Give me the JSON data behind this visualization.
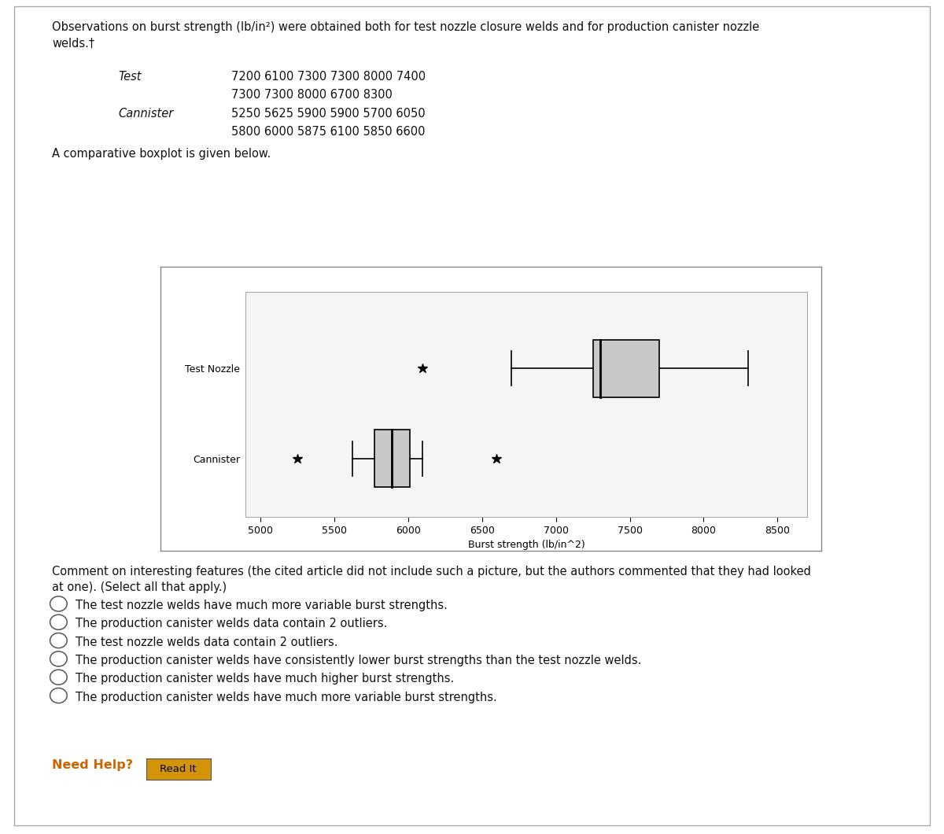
{
  "test_data": [
    7200,
    6100,
    7300,
    7300,
    8000,
    7400,
    7300,
    7300,
    8000,
    6700,
    8300
  ],
  "cannister_data": [
    5250,
    5625,
    5900,
    5900,
    5700,
    6050,
    5800,
    6000,
    5875,
    6100,
    5850,
    6600
  ],
  "xlim": [
    4900,
    8700
  ],
  "xticks": [
    5000,
    5500,
    6000,
    6500,
    7000,
    7500,
    8000,
    8500
  ],
  "xlabel": "Burst strength (lb/in^2)",
  "ylabel_test": "Test Nozzle",
  "ylabel_cannister": "Cannister",
  "box_facecolor": "#c8c8c8",
  "box_edge_color": "#000000",
  "whisker_color": "#000000",
  "outlier_color": "#000000",
  "plot_bg": "#ffffff",
  "inner_bg": "#f5f5f5",
  "page_bg": "#ffffff",
  "need_help_color": "#cc6600",
  "btn_color": "#d4940a",
  "intro_line1": "Observations on burst strength (lb/in²) were obtained both for test nozzle closure welds and for production canister nozzle",
  "intro_line2": "welds.†",
  "test_row1": "7200 6100 7300 7300 8000 7400",
  "test_row2": "7300 7300 8000 6700 8300",
  "can_row1": "5250 5625 5900 5900 5700 6050",
  "can_row2": "5800 6000 5875 6100 5850 6600",
  "comparative_text": "A comparative boxplot is given below.",
  "comment_text": "Comment on interesting features (the cited article did not include such a picture, but the authors commented that they had looked",
  "comment_text2": "at one). (Select all that apply.)",
  "options": [
    "The test nozzle welds have much more variable burst strengths.",
    "The production canister welds data contain 2 outliers.",
    "The test nozzle welds data contain 2 outliers.",
    "The production canister welds have consistently lower burst strengths than the test nozzle welds.",
    "The production canister welds have much higher burst strengths.",
    "The production canister welds have much more variable burst strengths."
  ]
}
